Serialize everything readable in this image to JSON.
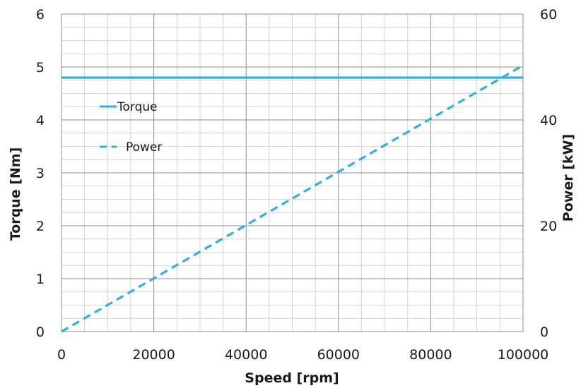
{
  "chart_data": {
    "type": "line",
    "xlabel": "Speed [rpm]",
    "ylabel_left": "Torque [Nm]",
    "ylabel_right": "Power [kW]",
    "xlim": [
      0,
      100000
    ],
    "ylim_left": [
      0,
      6
    ],
    "ylim_right": [
      0,
      60
    ],
    "x_ticks": [
      "0",
      "20000",
      "40000",
      "60000",
      "80000",
      "100000"
    ],
    "y_ticks_left": [
      "0",
      "1",
      "2",
      "3",
      "4",
      "5",
      "6"
    ],
    "y_ticks_right": [
      "0",
      "20",
      "40",
      "60"
    ],
    "grid": true,
    "legend_position": "upper-left",
    "series": [
      {
        "name": "Torque",
        "axis": "left",
        "style": "solid",
        "color": "#2eb1e0",
        "x": [
          0,
          100000
        ],
        "y": [
          4.8,
          4.8
        ]
      },
      {
        "name": "Power",
        "axis": "right",
        "style": "dashed",
        "color": "#2eb1e0",
        "x": [
          0,
          100000
        ],
        "y": [
          0,
          50.3
        ]
      }
    ]
  }
}
